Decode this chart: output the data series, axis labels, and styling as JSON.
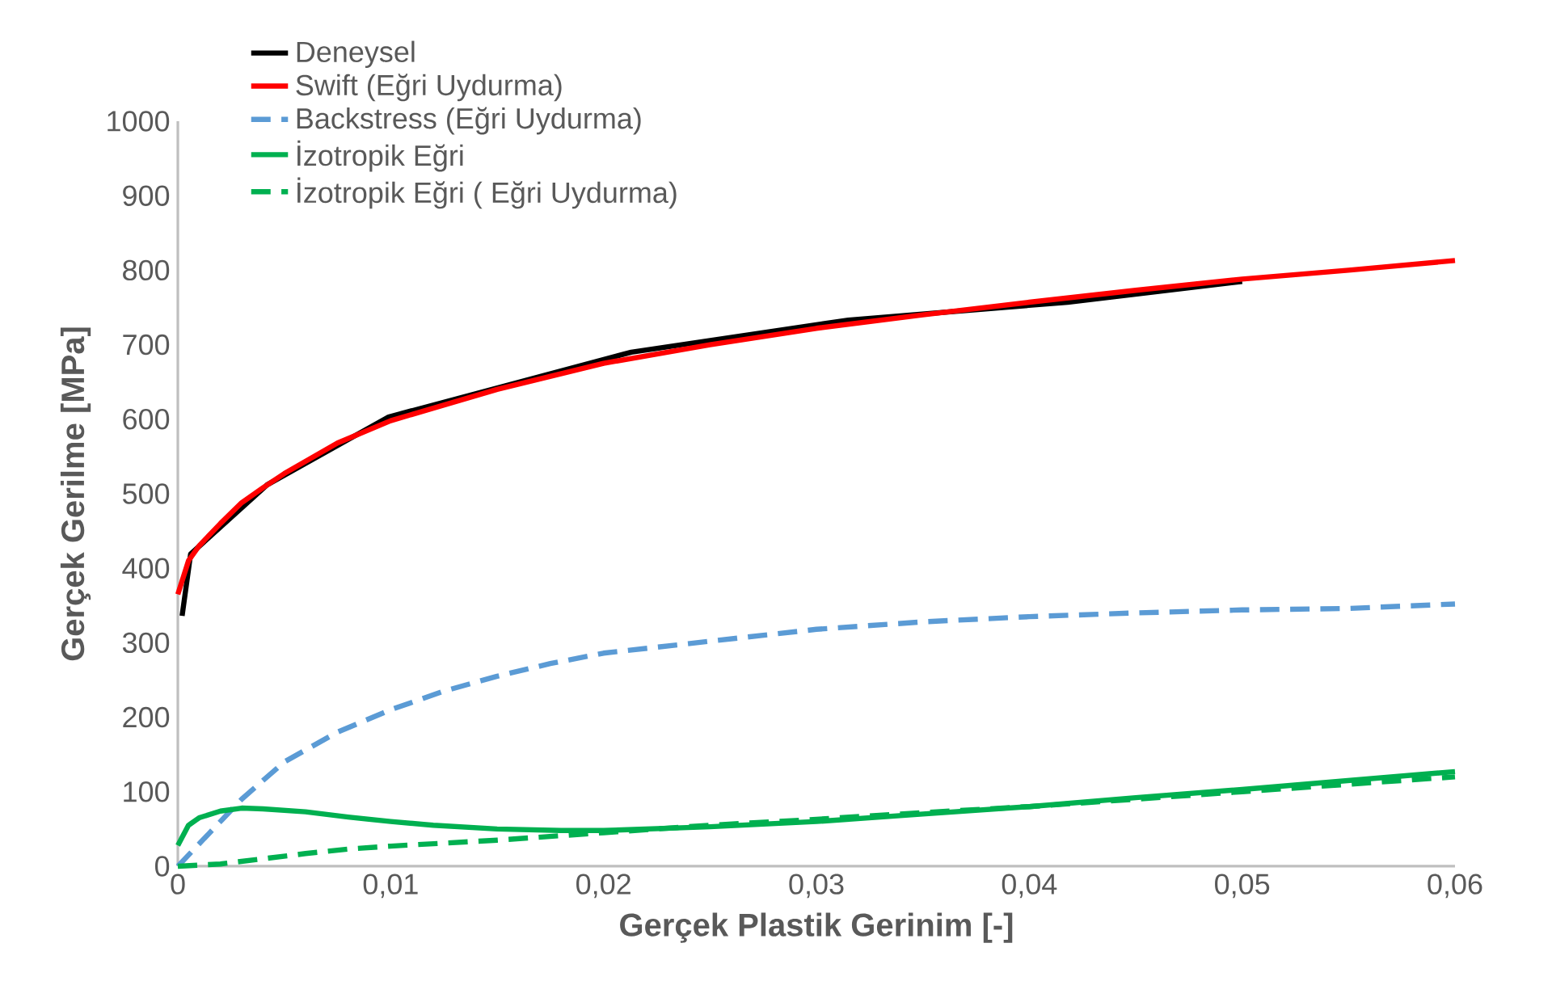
{
  "chart_data": {
    "type": "line",
    "xlabel": "Gerçek Plastik Gerinim [-]",
    "ylabel": "Gerçek Gerilme [MPa]",
    "xlim": [
      0,
      0.06
    ],
    "ylim": [
      0,
      1000
    ],
    "xticks": [
      0,
      {
        "value": 0.01,
        "label": "0,01"
      },
      {
        "value": 0.02,
        "label": "0,02"
      },
      {
        "value": 0.03,
        "label": "0,03"
      },
      {
        "value": 0.04,
        "label": "0,04"
      },
      {
        "value": 0.05,
        "label": "0,05"
      },
      {
        "value": 0.06,
        "label": "0,06"
      }
    ],
    "yticks": [
      0,
      100,
      200,
      300,
      400,
      500,
      600,
      700,
      800,
      900,
      1000
    ],
    "legend": "top left",
    "series": [
      {
        "name": "Deneysel",
        "color": "#000000",
        "line_style": "solid",
        "x": [
          0.0002,
          0.0006,
          0.0042,
          0.0099,
          0.0213,
          0.0315,
          0.0418,
          0.05
        ],
        "values": [
          336,
          419,
          512,
          603,
          690,
          733,
          757,
          785
        ]
      },
      {
        "name": "Swift (Eğri Uydurma)",
        "color": "#ff0000",
        "line_style": "solid",
        "x": [
          0,
          0.0005,
          0.001,
          0.002,
          0.003,
          0.004,
          0.005,
          0.0075,
          0.01,
          0.015,
          0.02,
          0.025,
          0.03,
          0.035,
          0.04,
          0.045,
          0.05,
          0.055,
          0.06
        ],
        "values": [
          365,
          410,
          430,
          460,
          488,
          508,
          527,
          568,
          598,
          640,
          675,
          700,
          722,
          740,
          757,
          773,
          788,
          800,
          813
        ]
      },
      {
        "name": "Backstress (Eğri Uydurma)",
        "color": "#5b9bd5",
        "line_style": "dashed",
        "x": [
          0,
          0.001,
          0.002,
          0.003,
          0.004,
          0.005,
          0.0075,
          0.01,
          0.0125,
          0.015,
          0.0175,
          0.02,
          0.025,
          0.03,
          0.035,
          0.04,
          0.045,
          0.05,
          0.055,
          0.06
        ],
        "values": [
          0,
          30,
          60,
          90,
          115,
          140,
          180,
          210,
          235,
          255,
          272,
          286,
          302,
          318,
          328,
          335,
          340,
          344,
          346,
          352
        ]
      },
      {
        "name": "İzotropik Eğri",
        "color": "#00b050",
        "line_style": "solid",
        "x": [
          0,
          0.0005,
          0.001,
          0.002,
          0.003,
          0.004,
          0.006,
          0.008,
          0.01,
          0.012,
          0.015,
          0.018,
          0.02,
          0.025,
          0.03,
          0.035,
          0.04,
          0.045,
          0.05,
          0.055,
          0.06
        ],
        "values": [
          28,
          55,
          65,
          74,
          78,
          77,
          73,
          66,
          60,
          55,
          50,
          48,
          48,
          53,
          60,
          70,
          80,
          92,
          103,
          115,
          127
        ]
      },
      {
        "name": "İzotropik Eğri ( Eğri Uydurma)",
        "color": "#00b050",
        "line_style": "dashed",
        "x": [
          0,
          0.002,
          0.004,
          0.006,
          0.008,
          0.01,
          0.015,
          0.02,
          0.025,
          0.03,
          0.035,
          0.04,
          0.045,
          0.05,
          0.055,
          0.06
        ],
        "values": [
          0,
          3,
          10,
          17,
          23,
          27,
          35,
          45,
          55,
          63,
          72,
          80,
          90,
          100,
          110,
          120
        ]
      }
    ]
  }
}
